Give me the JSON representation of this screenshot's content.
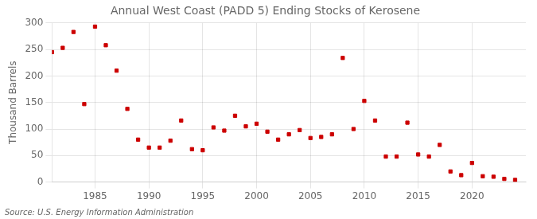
{
  "chart_data": {
    "type": "scatter",
    "title": "Annual West Coast (PADD 5) Ending Stocks of Kerosene",
    "ylabel": "Thousand Barrels",
    "annotation": "Source: U.S. Energy Information Administration",
    "x": [
      1981,
      1982,
      1983,
      1984,
      1985,
      1986,
      1987,
      1988,
      1989,
      1990,
      1991,
      1992,
      1993,
      1994,
      1995,
      1996,
      1997,
      1998,
      1999,
      2000,
      2001,
      2002,
      2003,
      2004,
      2005,
      2006,
      2007,
      2008,
      2009,
      2010,
      2011,
      2012,
      2013,
      2014,
      2015,
      2016,
      2017,
      2018,
      2019,
      2020,
      2021,
      2022,
      2023,
      2024
    ],
    "values": [
      245,
      253,
      283,
      147,
      293,
      258,
      210,
      138,
      80,
      65,
      65,
      78,
      116,
      62,
      60,
      103,
      97,
      125,
      105,
      110,
      95,
      80,
      90,
      98,
      83,
      85,
      90,
      234,
      100,
      153,
      116,
      48,
      48,
      112,
      52,
      48,
      70,
      20,
      13,
      36,
      11,
      10,
      6,
      4
    ],
    "color": "#cc0000",
    "marker": "square",
    "xlim": [
      1981,
      2025
    ],
    "xticks": [
      1985,
      1990,
      1995,
      2000,
      2005,
      2010,
      2015,
      2020
    ],
    "ylim": [
      0,
      300
    ],
    "yticks": [
      0,
      50,
      100,
      150,
      200,
      250,
      300
    ],
    "grid": true
  }
}
